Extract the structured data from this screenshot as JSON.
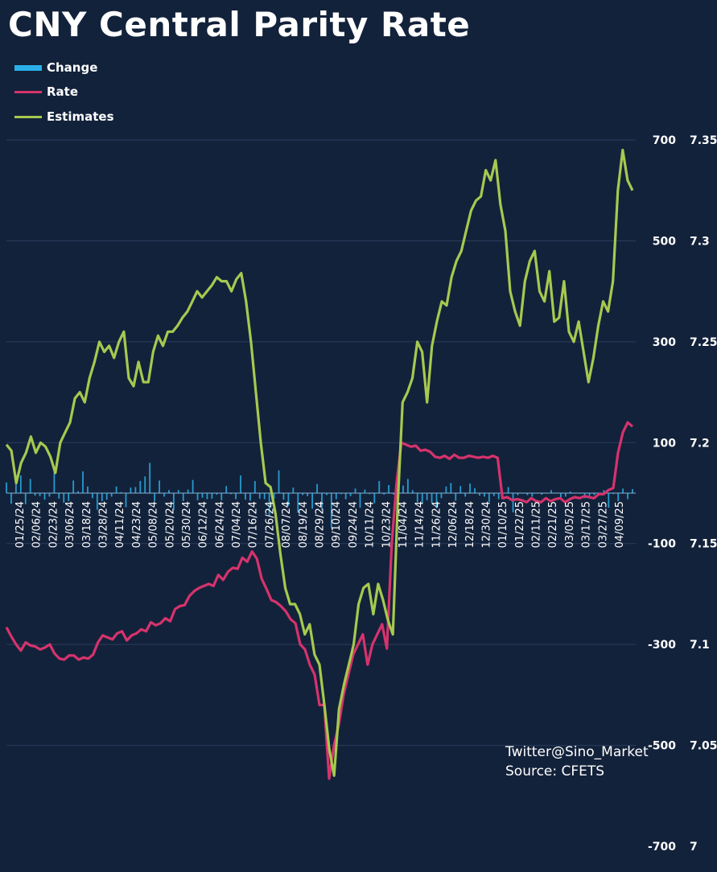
{
  "title": "CNY Central Parity Rate",
  "legend": [
    {
      "label": "Change",
      "color": "#2ab0e8"
    },
    {
      "label": "Rate",
      "color": "#d6336c"
    },
    {
      "label": "Estimates",
      "color": "#a6c94f"
    }
  ],
  "credit": {
    "twitter": "Twitter@Sino_Market",
    "source": "Source: CFETS"
  },
  "chart_data": {
    "type": "line",
    "title": "CNY Central Parity Rate",
    "y_left": {
      "ticks": [
        "700",
        "500",
        "300",
        "100",
        "-100",
        "-300",
        "-500",
        "-700"
      ],
      "range": [
        -700,
        700
      ],
      "unit": "pips"
    },
    "y_right": {
      "ticks": [
        "7.35",
        "7.3",
        "7.25",
        "7.2",
        "7.15",
        "7.1",
        "7.05",
        "7"
      ],
      "range": [
        7.0,
        7.35
      ]
    },
    "x_tick_labels": [
      "01/25/24",
      "02/06/24",
      "02/23/24",
      "03/06/24",
      "03/18/24",
      "03/28/24",
      "04/11/24",
      "04/23/24",
      "05/08/24",
      "05/20/24",
      "05/30/24",
      "06/12/24",
      "06/24/24",
      "07/04/24",
      "07/16/24",
      "07/26/24",
      "08/07/24",
      "08/19/24",
      "08/29/24",
      "09/10/24",
      "09/24/24",
      "10/11/24",
      "10/23/24",
      "11/04/24",
      "11/14/24",
      "11/26/24",
      "12/06/24",
      "12/18/24",
      "12/30/24",
      "01/10/25",
      "01/22/25",
      "02/11/25",
      "02/21/25",
      "03/05/25",
      "03/17/25",
      "03/27/25",
      "04/09/25"
    ],
    "series": [
      {
        "name": "Estimates",
        "axis": "right",
        "color": "#a6c94f",
        "values": [
          7.199,
          7.196,
          7.18,
          7.19,
          7.195,
          7.203,
          7.195,
          7.2,
          7.198,
          7.193,
          7.185,
          7.2,
          7.205,
          7.21,
          7.222,
          7.225,
          7.22,
          7.232,
          7.24,
          7.25,
          7.245,
          7.248,
          7.242,
          7.25,
          7.255,
          7.232,
          7.228,
          7.24,
          7.23,
          7.23,
          7.245,
          7.253,
          7.248,
          7.255,
          7.255,
          7.258,
          7.262,
          7.265,
          7.27,
          7.275,
          7.272,
          7.275,
          7.278,
          7.282,
          7.28,
          7.28,
          7.275,
          7.281,
          7.284,
          7.27,
          7.25,
          7.225,
          7.2,
          7.18,
          7.178,
          7.165,
          7.145,
          7.128,
          7.12,
          7.12,
          7.115,
          7.105,
          7.11,
          7.095,
          7.09,
          7.07,
          7.048,
          7.035,
          7.068,
          7.08,
          7.09,
          7.1,
          7.12,
          7.128,
          7.13,
          7.115,
          7.13,
          7.122,
          7.112,
          7.105,
          7.17,
          7.22,
          7.225,
          7.232,
          7.25,
          7.245,
          7.22,
          7.248,
          7.26,
          7.27,
          7.268,
          7.282,
          7.29,
          7.295,
          7.305,
          7.315,
          7.32,
          7.322,
          7.335,
          7.33,
          7.34,
          7.318,
          7.305,
          7.275,
          7.265,
          7.258,
          7.28,
          7.29,
          7.295,
          7.275,
          7.27,
          7.285,
          7.26,
          7.262,
          7.28,
          7.255,
          7.25,
          7.26,
          7.245,
          7.23,
          7.242,
          7.258,
          7.27,
          7.265,
          7.28,
          7.325,
          7.345,
          7.33,
          7.325
        ]
      },
      {
        "name": "Rate",
        "axis": "right",
        "color": "#d6336c",
        "values": [
          7.1085,
          7.104,
          7.1,
          7.097,
          7.101,
          7.0995,
          7.099,
          7.0975,
          7.0985,
          7.1,
          7.0955,
          7.093,
          7.0925,
          7.0945,
          7.0945,
          7.0925,
          7.0935,
          7.093,
          7.095,
          7.101,
          7.1045,
          7.1035,
          7.1025,
          7.1055,
          7.1065,
          7.102,
          7.1045,
          7.1055,
          7.1075,
          7.1065,
          7.111,
          7.1095,
          7.1105,
          7.113,
          7.1115,
          7.1175,
          7.119,
          7.1195,
          7.124,
          7.1265,
          7.128,
          7.129,
          7.13,
          7.129,
          7.1345,
          7.132,
          7.136,
          7.138,
          7.1375,
          7.143,
          7.141,
          7.146,
          7.1425,
          7.1325,
          7.1275,
          7.122,
          7.121,
          7.119,
          7.1165,
          7.1125,
          7.1105,
          7.1,
          7.0975,
          7.09,
          7.085,
          7.07,
          7.07,
          7.0335,
          7.05,
          7.06,
          7.075,
          7.085,
          7.095,
          7.1,
          7.105,
          7.09,
          7.1,
          7.105,
          7.11,
          7.098,
          7.15,
          7.18,
          7.2,
          7.199,
          7.198,
          7.1985,
          7.196,
          7.1965,
          7.1955,
          7.193,
          7.1925,
          7.1935,
          7.192,
          7.194,
          7.1925,
          7.1925,
          7.1935,
          7.193,
          7.1925,
          7.193,
          7.1925,
          7.1935,
          7.1925,
          7.1725,
          7.173,
          7.1715,
          7.172,
          7.1715,
          7.1705,
          7.1725,
          7.171,
          7.1705,
          7.1725,
          7.171,
          7.172,
          7.1725,
          7.1705,
          7.172,
          7.173,
          7.1725,
          7.1735,
          7.173,
          7.1725,
          7.1745,
          7.1745,
          7.1765,
          7.1775,
          7.195,
          7.205,
          7.21,
          7.208
        ]
      },
      {
        "name": "Change",
        "axis": "left",
        "type": "bar",
        "color": "#2ab0e8",
        "values": [
          21,
          -21,
          31,
          35,
          -22,
          28,
          -5,
          -6,
          -13,
          -7,
          47,
          -11,
          -19,
          -16,
          25,
          4,
          43,
          13,
          -10,
          -33,
          -16,
          -13,
          -7,
          13,
          2,
          -28,
          11,
          12,
          24,
          33,
          60,
          -16,
          25,
          -7,
          6,
          -33,
          6,
          -16,
          7,
          26,
          -14,
          -9,
          -12,
          -11,
          -3,
          -14,
          14,
          -2,
          -12,
          35,
          -13,
          -15,
          24,
          -11,
          -12,
          -46,
          -11,
          45,
          -13,
          -25,
          11,
          -39,
          -4,
          -6,
          -31,
          18,
          -33,
          -4,
          -69,
          -12,
          -2,
          -12,
          -6,
          9,
          -29,
          7,
          -2,
          -20,
          24,
          -3,
          16,
          -3,
          -15,
          15,
          28,
          6,
          -18,
          -20,
          -14,
          -19,
          -30,
          -10,
          13,
          20,
          -15,
          14,
          -7,
          19,
          10,
          -5,
          -7,
          -18,
          -6,
          -12,
          -1,
          12,
          -38,
          -4,
          -1,
          -4,
          -7,
          0,
          -3,
          0,
          6,
          1,
          -8,
          -7,
          3,
          0,
          -1,
          -10,
          -5,
          -4,
          -1,
          6,
          -29,
          -2,
          -16,
          9,
          -12,
          8
        ]
      }
    ]
  }
}
